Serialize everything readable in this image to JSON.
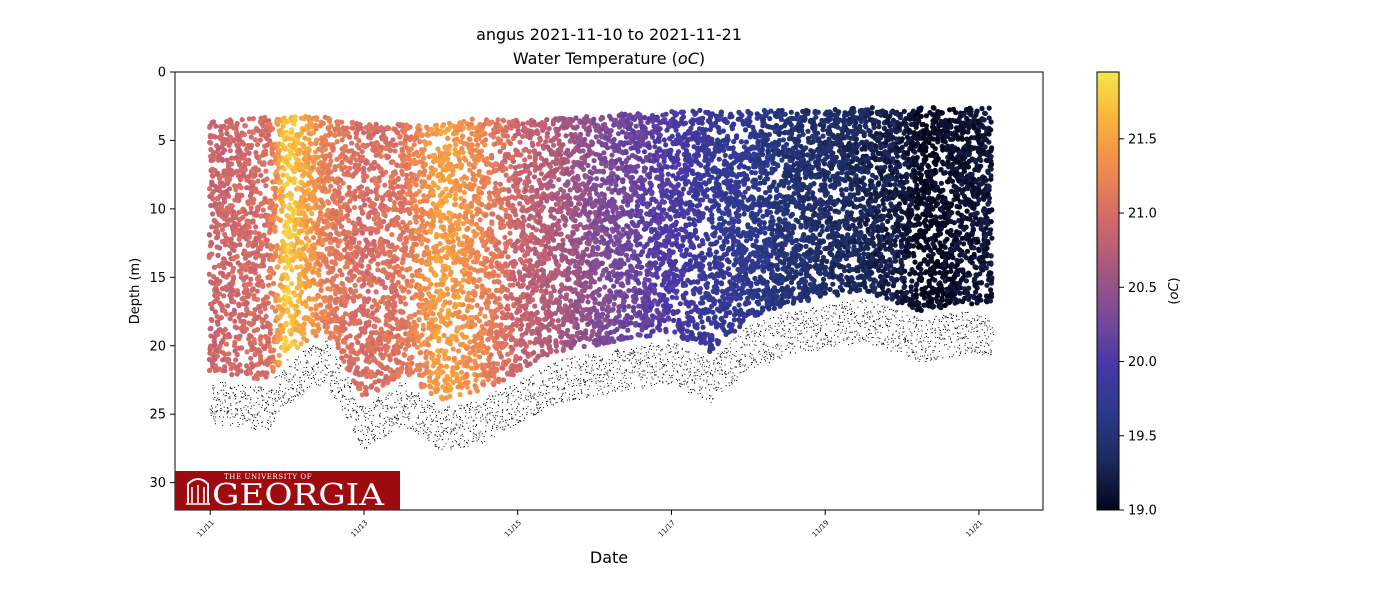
{
  "chart_data": {
    "type": "scatter",
    "title_line1": "angus 2021-11-10 to 2021-11-21",
    "title_line2": "Water Temperature (",
    "title_unit": "oC",
    "title_close": ")",
    "xlabel": "Date",
    "ylabel": "Depth (m)",
    "colorbar_label_open": "(",
    "colorbar_label_unit": "oC",
    "colorbar_label_close": ")",
    "x_range": [
      "2021-11-10T13:00",
      "2021-11-21T20:00"
    ],
    "y_range": [
      32,
      0
    ],
    "y_inverted": true,
    "x_ticks": [
      "11/11",
      "11/13",
      "11/15",
      "11/17",
      "11/19",
      "11/21"
    ],
    "x_tick_dates": [
      "2021-11-11",
      "2021-11-13",
      "2021-11-15",
      "2021-11-17",
      "2021-11-19",
      "2021-11-21"
    ],
    "y_ticks": [
      "0",
      "5",
      "10",
      "15",
      "20",
      "25",
      "30"
    ],
    "y_tick_values": [
      0,
      5,
      10,
      15,
      20,
      25,
      30
    ],
    "colorbar_range": [
      19.0,
      21.95
    ],
    "colorbar_ticks": [
      "19.0",
      "19.5",
      "20.0",
      "20.5",
      "21.0",
      "21.5"
    ],
    "colorbar_tick_values": [
      19.0,
      19.5,
      20.0,
      20.5,
      21.0,
      21.5
    ],
    "colormap": [
      "#03051a",
      "#1c2a5c",
      "#2a3a8c",
      "#4a37a6",
      "#7a4a9a",
      "#a8587e",
      "#d36a6a",
      "#ef8950",
      "#f9b23c",
      "#f4e64a"
    ],
    "grid": false,
    "colorbar_position": "right",
    "series": [
      {
        "values": "temperature (°C)",
        "description_points": [
          {
            "date": "2021-11-11T00:00",
            "depth_top": 3.5,
            "depth_bottom": 22,
            "temp": 20.9
          },
          {
            "date": "2021-11-11T18:00",
            "depth_top": 3.3,
            "depth_bottom": 22.5,
            "temp": 21.0
          },
          {
            "date": "2021-11-12T00:00",
            "depth_top": 3.2,
            "depth_bottom": 20.5,
            "temp": 21.8
          },
          {
            "date": "2021-11-12T12:00",
            "depth_top": 3.3,
            "depth_bottom": 19,
            "temp": 21.2
          },
          {
            "date": "2021-11-13T00:00",
            "depth_top": 3.8,
            "depth_bottom": 24,
            "temp": 21.0
          },
          {
            "date": "2021-11-13T12:00",
            "depth_top": 3.8,
            "depth_bottom": 22,
            "temp": 21.1
          },
          {
            "date": "2021-11-14T00:00",
            "depth_top": 3.6,
            "depth_bottom": 24,
            "temp": 21.5
          },
          {
            "date": "2021-11-14T12:00",
            "depth_top": 3.4,
            "depth_bottom": 23.5,
            "temp": 21.3
          },
          {
            "date": "2021-11-15T00:00",
            "depth_top": 3.5,
            "depth_bottom": 22,
            "temp": 20.9
          },
          {
            "date": "2021-11-15T12:00",
            "depth_top": 3.4,
            "depth_bottom": 20.5,
            "temp": 20.7
          },
          {
            "date": "2021-11-16T00:00",
            "depth_top": 3.2,
            "depth_bottom": 20,
            "temp": 20.4
          },
          {
            "date": "2021-11-16T12:00",
            "depth_top": 3.0,
            "depth_bottom": 19.5,
            "temp": 20.2
          },
          {
            "date": "2021-11-17T00:00",
            "depth_top": 2.8,
            "depth_bottom": 19,
            "temp": 20.0
          },
          {
            "date": "2021-11-17T12:00",
            "depth_top": 2.8,
            "depth_bottom": 20.5,
            "temp": 19.8
          },
          {
            "date": "2021-11-18T00:00",
            "depth_top": 2.8,
            "depth_bottom": 18,
            "temp": 19.7
          },
          {
            "date": "2021-11-18T12:00",
            "depth_top": 2.8,
            "depth_bottom": 17,
            "temp": 19.5
          },
          {
            "date": "2021-11-19T00:00",
            "depth_top": 2.8,
            "depth_bottom": 16.5,
            "temp": 19.4
          },
          {
            "date": "2021-11-19T12:00",
            "depth_top": 2.6,
            "depth_bottom": 16,
            "temp": 19.3
          },
          {
            "date": "2021-11-20T00:00",
            "depth_top": 2.6,
            "depth_bottom": 17,
            "temp": 19.2
          },
          {
            "date": "2021-11-20T06:00",
            "depth_top": 2.6,
            "depth_bottom": 17.5,
            "temp": 19.0
          },
          {
            "date": "2021-11-20T18:00",
            "depth_top": 2.6,
            "depth_bottom": 17,
            "temp": 19.1
          },
          {
            "date": "2021-11-21T04:00",
            "depth_top": 2.6,
            "depth_bottom": 17,
            "temp": 19.15
          }
        ]
      }
    ]
  },
  "logo": {
    "small_text": "THE UNIVERSITY OF",
    "big_text": "GEORGIA",
    "background": "#9e0b0f"
  }
}
